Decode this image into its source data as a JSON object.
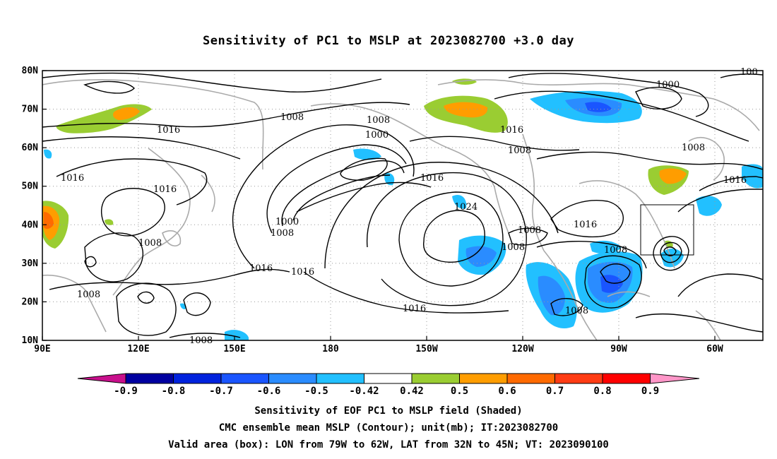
{
  "title": "Sensitivity of PC1 to MSLP at 2023082700 +3.0 day",
  "map": {
    "lon_labels": [
      "90E",
      "120E",
      "150E",
      "180",
      "150W",
      "120W",
      "90W",
      "60W"
    ],
    "lat_labels": [
      "80N",
      "70N",
      "60N",
      "50N",
      "40N",
      "30N",
      "20N",
      "10N"
    ],
    "contour_labels": [
      "1008",
      "1008",
      "1000",
      "1016",
      "1008",
      "1016",
      "1016",
      "1008",
      "1000",
      "1008",
      "1016",
      "1024",
      "1000",
      "1008",
      "1016",
      "1016",
      "1008",
      "1008",
      "1016",
      "1008",
      "1008",
      "1008",
      "1016",
      "1016",
      "100",
      "1008",
      "1016"
    ],
    "valid_box": {
      "lon_from": "79W",
      "lon_to": "62W",
      "lat_from": "32N",
      "lat_to": "45N"
    }
  },
  "colorbar": {
    "labels": [
      "-0.9",
      "-0.8",
      "-0.7",
      "-0.6",
      "-0.5",
      "-0.42",
      "0.42",
      "0.5",
      "0.6",
      "0.7",
      "0.8",
      "0.9"
    ],
    "colors": [
      "#0000a0",
      "#0022dd",
      "#1a55ff",
      "#2a8cff",
      "#22c0ff",
      "#ffffff",
      "#9acd32",
      "#ff9d00",
      "#ff6a00",
      "#ff3c14",
      "#ff0000"
    ],
    "low_end_color": "#c8108c",
    "high_end_color": "#ff96c8"
  },
  "captions": [
    "Sensitivity of EOF PC1 to MSLP field (Shaded)",
    "CMC ensemble mean MSLP (Contour); unit(mb); IT:2023082700",
    "Valid area (box): LON from 79W to 62W, LAT from 32N to 45N; VT: 2023090100"
  ]
}
